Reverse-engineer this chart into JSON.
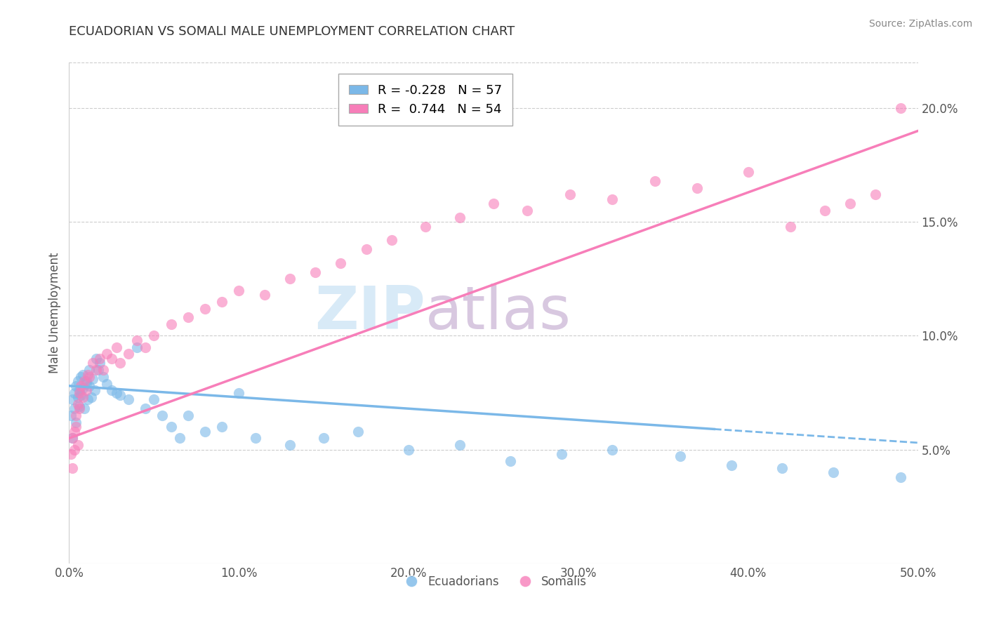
{
  "title": "ECUADORIAN VS SOMALI MALE UNEMPLOYMENT CORRELATION CHART",
  "source": "Source: ZipAtlas.com",
  "xlabel_ticks": [
    "0.0%",
    "10.0%",
    "20.0%",
    "30.0%",
    "40.0%",
    "50.0%"
  ],
  "xlabel_vals": [
    0.0,
    0.1,
    0.2,
    0.3,
    0.4,
    0.5
  ],
  "ylabel": "Male Unemployment",
  "ylabel_ticks": [
    "5.0%",
    "10.0%",
    "15.0%",
    "20.0%"
  ],
  "ylabel_vals": [
    0.05,
    0.1,
    0.15,
    0.2
  ],
  "xlim": [
    0.0,
    0.5
  ],
  "ylim": [
    0.0,
    0.22
  ],
  "legend_R_blue": "-0.228",
  "legend_N_blue": "57",
  "legend_R_pink": "0.744",
  "legend_N_pink": "54",
  "color_blue": "#7bb8e8",
  "color_pink": "#f77eb9",
  "watermark_zip": "ZIP",
  "watermark_atlas": "atlas",
  "ecuadorian_x": [
    0.001,
    0.002,
    0.002,
    0.003,
    0.003,
    0.004,
    0.004,
    0.005,
    0.005,
    0.006,
    0.006,
    0.007,
    0.007,
    0.008,
    0.008,
    0.009,
    0.01,
    0.01,
    0.011,
    0.012,
    0.012,
    0.013,
    0.014,
    0.015,
    0.016,
    0.017,
    0.018,
    0.02,
    0.022,
    0.025,
    0.028,
    0.03,
    0.035,
    0.04,
    0.045,
    0.05,
    0.055,
    0.06,
    0.065,
    0.07,
    0.08,
    0.09,
    0.1,
    0.11,
    0.13,
    0.15,
    0.17,
    0.2,
    0.23,
    0.26,
    0.29,
    0.32,
    0.36,
    0.39,
    0.42,
    0.45,
    0.49
  ],
  "ecuadorian_y": [
    0.065,
    0.072,
    0.055,
    0.075,
    0.068,
    0.078,
    0.062,
    0.073,
    0.08,
    0.076,
    0.069,
    0.082,
    0.074,
    0.083,
    0.077,
    0.068,
    0.08,
    0.079,
    0.072,
    0.085,
    0.078,
    0.073,
    0.081,
    0.076,
    0.09,
    0.085,
    0.088,
    0.082,
    0.079,
    0.076,
    0.075,
    0.074,
    0.072,
    0.095,
    0.068,
    0.072,
    0.065,
    0.06,
    0.055,
    0.065,
    0.058,
    0.06,
    0.075,
    0.055,
    0.052,
    0.055,
    0.058,
    0.05,
    0.052,
    0.045,
    0.048,
    0.05,
    0.047,
    0.043,
    0.042,
    0.04,
    0.038
  ],
  "somali_x": [
    0.001,
    0.002,
    0.002,
    0.003,
    0.003,
    0.004,
    0.004,
    0.005,
    0.005,
    0.006,
    0.006,
    0.007,
    0.008,
    0.009,
    0.01,
    0.011,
    0.012,
    0.014,
    0.016,
    0.018,
    0.02,
    0.022,
    0.025,
    0.028,
    0.03,
    0.035,
    0.04,
    0.045,
    0.05,
    0.06,
    0.07,
    0.08,
    0.09,
    0.1,
    0.115,
    0.13,
    0.145,
    0.16,
    0.175,
    0.19,
    0.21,
    0.23,
    0.25,
    0.27,
    0.295,
    0.32,
    0.345,
    0.37,
    0.4,
    0.425,
    0.445,
    0.46,
    0.475,
    0.49
  ],
  "somali_y": [
    0.048,
    0.055,
    0.042,
    0.058,
    0.05,
    0.065,
    0.06,
    0.07,
    0.052,
    0.075,
    0.068,
    0.078,
    0.073,
    0.08,
    0.076,
    0.083,
    0.082,
    0.088,
    0.085,
    0.09,
    0.085,
    0.092,
    0.09,
    0.095,
    0.088,
    0.092,
    0.098,
    0.095,
    0.1,
    0.105,
    0.108,
    0.112,
    0.115,
    0.12,
    0.118,
    0.125,
    0.128,
    0.132,
    0.138,
    0.142,
    0.148,
    0.152,
    0.158,
    0.155,
    0.162,
    0.16,
    0.168,
    0.165,
    0.172,
    0.148,
    0.155,
    0.158,
    0.162,
    0.2
  ],
  "ecu_trend_x": [
    0.0,
    0.5
  ],
  "ecu_trend_y": [
    0.078,
    0.053
  ],
  "som_trend_x": [
    0.0,
    0.5
  ],
  "som_trend_y": [
    0.055,
    0.19
  ]
}
